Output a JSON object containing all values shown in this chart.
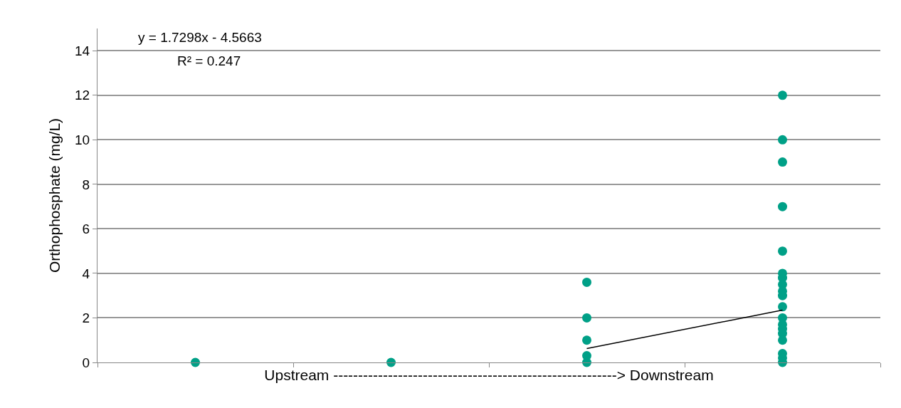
{
  "chart_data": {
    "type": "scatter",
    "ylabel": "Orthophosphate (mg/L)",
    "xlabel": "Upstream ---------------------------------------------------------> Downstream",
    "annotations": [
      "y = 1.7298x - 4.5663",
      "R² = 0.247"
    ],
    "categories": [
      null,
      null,
      null,
      null
    ],
    "tick_labels": "y",
    "ylim": [
      0,
      15
    ],
    "yticks": [
      0,
      2,
      4,
      6,
      8,
      10,
      12,
      14
    ],
    "grid": "y",
    "marker": "circle",
    "series": [
      {
        "color": "#00a087",
        "values": [
          0,
          0,
          3.6,
          12
        ]
      },
      {
        "color": "#00a087",
        "values": [
          null,
          null,
          2,
          10
        ]
      },
      {
        "color": "#00a087",
        "values": [
          null,
          null,
          1,
          9
        ]
      },
      {
        "color": "#00a087",
        "values": [
          null,
          null,
          0.3,
          7
        ]
      },
      {
        "color": "#00a087",
        "values": [
          null,
          null,
          null,
          5
        ]
      },
      {
        "color": "#00a087",
        "values": [
          null,
          null,
          null,
          4
        ]
      },
      {
        "color": "#00a087",
        "values": [
          null,
          null,
          0,
          3.8
        ]
      },
      {
        "color": "#00a087",
        "values": [
          null,
          null,
          null,
          3.5
        ]
      },
      {
        "color": "#00a087",
        "values": [
          null,
          null,
          null,
          3.2
        ]
      },
      {
        "color": "#00a087",
        "values": [
          null,
          null,
          null,
          3
        ]
      },
      {
        "color": "#00a087",
        "values": [
          null,
          null,
          null,
          2.5
        ]
      },
      {
        "color": "#00a087",
        "values": [
          null,
          null,
          null,
          2
        ]
      },
      {
        "color": "#00a087",
        "values": [
          null,
          null,
          null,
          1.7
        ]
      },
      {
        "color": "#00a087",
        "values": [
          null,
          null,
          null,
          1.5
        ]
      },
      {
        "color": "#00a087",
        "values": [
          null,
          null,
          null,
          1.3
        ]
      },
      {
        "color": "#00a087",
        "values": [
          null,
          null,
          null,
          1
        ]
      },
      {
        "color": "#00a087",
        "values": [
          null,
          null,
          null,
          0.4
        ]
      },
      {
        "color": "#00a087",
        "values": [
          null,
          null,
          null,
          0.2
        ]
      },
      {
        "color": "#00a087",
        "values": [
          null,
          null,
          null,
          0
        ]
      },
      {
        "type": "line",
        "color": "#000000",
        "marker": "none",
        "line_style": "solid",
        "values": [
          null,
          null,
          0.62,
          2.35
        ]
      }
    ]
  }
}
